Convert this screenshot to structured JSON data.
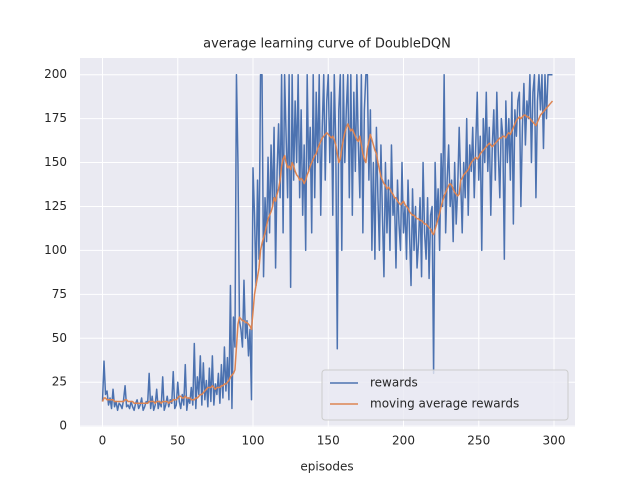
{
  "chart_data": {
    "type": "line",
    "title": "average learning curve of DoubleDQN",
    "x_label": "episodes",
    "x": [
      0,
      1,
      2,
      3,
      4,
      5,
      6,
      7,
      8,
      9,
      10,
      11,
      12,
      13,
      14,
      15,
      16,
      17,
      18,
      19,
      20,
      21,
      22,
      23,
      24,
      25,
      26,
      27,
      28,
      29,
      30,
      31,
      32,
      33,
      34,
      35,
      36,
      37,
      38,
      39,
      40,
      41,
      42,
      43,
      44,
      45,
      46,
      47,
      48,
      49,
      50,
      51,
      52,
      53,
      54,
      55,
      56,
      57,
      58,
      59,
      60,
      61,
      62,
      63,
      64,
      65,
      66,
      67,
      68,
      69,
      70,
      71,
      72,
      73,
      74,
      75,
      76,
      77,
      78,
      79,
      80,
      81,
      82,
      83,
      84,
      85,
      86,
      87,
      88,
      89,
      90,
      91,
      92,
      93,
      94,
      95,
      96,
      97,
      98,
      99,
      100,
      101,
      102,
      103,
      104,
      105,
      106,
      107,
      108,
      109,
      110,
      111,
      112,
      113,
      114,
      115,
      116,
      117,
      118,
      119,
      120,
      121,
      122,
      123,
      124,
      125,
      126,
      127,
      128,
      129,
      130,
      131,
      132,
      133,
      134,
      135,
      136,
      137,
      138,
      139,
      140,
      141,
      142,
      143,
      144,
      145,
      146,
      147,
      148,
      149,
      150,
      151,
      152,
      153,
      154,
      155,
      156,
      157,
      158,
      159,
      160,
      161,
      162,
      163,
      164,
      165,
      166,
      167,
      168,
      169,
      170,
      171,
      172,
      173,
      174,
      175,
      176,
      177,
      178,
      179,
      180,
      181,
      182,
      183,
      184,
      185,
      186,
      187,
      188,
      189,
      190,
      191,
      192,
      193,
      194,
      195,
      196,
      197,
      198,
      199,
      200,
      201,
      202,
      203,
      204,
      205,
      206,
      207,
      208,
      209,
      210,
      211,
      212,
      213,
      214,
      215,
      216,
      217,
      218,
      219,
      220,
      221,
      222,
      223,
      224,
      225,
      226,
      227,
      228,
      229,
      230,
      231,
      232,
      233,
      234,
      235,
      236,
      237,
      238,
      239,
      240,
      241,
      242,
      243,
      244,
      245,
      246,
      247,
      248,
      249,
      250,
      251,
      252,
      253,
      254,
      255,
      256,
      257,
      258,
      259,
      260,
      261,
      262,
      263,
      264,
      265,
      266,
      267,
      268,
      269,
      270,
      271,
      272,
      273,
      274,
      275,
      276,
      277,
      278,
      279,
      280,
      281,
      282,
      283,
      284,
      285,
      286,
      287,
      288,
      289,
      290,
      291,
      292,
      293,
      294,
      295,
      296,
      297,
      298,
      299
    ],
    "series": [
      {
        "name": "rewards",
        "color": "#4c72b0",
        "values": [
          14,
          37,
          18,
          20,
          12,
          16,
          10,
          21,
          11,
          14,
          9,
          13,
          12,
          10,
          15,
          23,
          11,
          12,
          10,
          14,
          11,
          9,
          13,
          15,
          10,
          12,
          16,
          9,
          11,
          14,
          13,
          30,
          10,
          17,
          9,
          12,
          21,
          10,
          14,
          11,
          28,
          9,
          12,
          17,
          11,
          15,
          13,
          31,
          10,
          12,
          25,
          14,
          10,
          18,
          12,
          35,
          9,
          16,
          13,
          22,
          12,
          47,
          10,
          28,
          18,
          40,
          12,
          36,
          15,
          26,
          11,
          33,
          14,
          40,
          12,
          24,
          18,
          30,
          13,
          35,
          16,
          45,
          20,
          39,
          15,
          80,
          10,
          62,
          45,
          200,
          150,
          60,
          55,
          45,
          83,
          50,
          60,
          40,
          55,
          15,
          147,
          120,
          80,
          140,
          95,
          200,
          200,
          85,
          130,
          105,
          153,
          110,
          160,
          125,
          170,
          90,
          145,
          172,
          130,
          200,
          110,
          200,
          165,
          130,
          200,
          79,
          200,
          140,
          185,
          150,
          200,
          130,
          180,
          120,
          160,
          100,
          200,
          145,
          170,
          110,
          200,
          130,
          190,
          150,
          200,
          120,
          170,
          200,
          140,
          185,
          200,
          150,
          190,
          120,
          200,
          160,
          44,
          180,
          200,
          100,
          200,
          150,
          180,
          200,
          130,
          200,
          120,
          190,
          145,
          200,
          160,
          130,
          200,
          110,
          180,
          200,
          200,
          140,
          180,
          100,
          150,
          95,
          170,
          130,
          100,
          160,
          120,
          85,
          150,
          110,
          140,
          100,
          160,
          120,
          130,
          90,
          140,
          115,
          100,
          150,
          110,
          125,
          95,
          140,
          110,
          80,
          135,
          100,
          125,
          90,
          105,
          130,
          85,
          150,
          110,
          95,
          130,
          84,
          120,
          125,
          30,
          150,
          115,
          135,
          100,
          155,
          125,
          200,
          110,
          140,
          160,
          125,
          140,
          105,
          150,
          115,
          135,
          170,
          140,
          110,
          150,
          130,
          175,
          120,
          160,
          145,
          170,
          130,
          160,
          190,
          140,
          165,
          100,
          175,
          150,
          190,
          145,
          170,
          120,
          160,
          180,
          140,
          190,
          155,
          130,
          175,
          165,
          95,
          185,
          150,
          175,
          140,
          190,
          115,
          180,
          165,
          185,
          190,
          125,
          170,
          195,
          160,
          185,
          175,
          200,
          150,
          190,
          200,
          130,
          185,
          200,
          180,
          200,
          158,
          200,
          175,
          200,
          200,
          200,
          200
        ]
      },
      {
        "name": "moving average rewards",
        "color": "#dd8452",
        "values": [
          14,
          16,
          16,
          15,
          15,
          15,
          15,
          15,
          14,
          14,
          14,
          14,
          14,
          14,
          14,
          15,
          15,
          14,
          14,
          14,
          14,
          13,
          13,
          13,
          13,
          13,
          13,
          13,
          13,
          13,
          13,
          14,
          14,
          14,
          14,
          13,
          14,
          14,
          14,
          13,
          14,
          14,
          14,
          14,
          13,
          14,
          14,
          15,
          15,
          15,
          16,
          17,
          17,
          16,
          16,
          17,
          16,
          16,
          16,
          15,
          15,
          15,
          16,
          16,
          17,
          18,
          18,
          19,
          20,
          21,
          22,
          22,
          22,
          23,
          22,
          21,
          22,
          22,
          22,
          23,
          23,
          24,
          24,
          25,
          26,
          28,
          29,
          30,
          32,
          45,
          58,
          62,
          61,
          60,
          60,
          59,
          59,
          58,
          57,
          55,
          65,
          75,
          80,
          85,
          90,
          100,
          104,
          107,
          110,
          114,
          118,
          120,
          122,
          125,
          130,
          128,
          132,
          135,
          140,
          148,
          152,
          154,
          150,
          147,
          148,
          146,
          150,
          148,
          145,
          143,
          142,
          140,
          141,
          140,
          138,
          140,
          143,
          145,
          148,
          150,
          152,
          154,
          155,
          158,
          160,
          162,
          164,
          165,
          166,
          167,
          166,
          165,
          164,
          165,
          163,
          160,
          155,
          150,
          152,
          158,
          163,
          167,
          170,
          172,
          170,
          168,
          169,
          167,
          165,
          163,
          162,
          165,
          160,
          155,
          152,
          150,
          158,
          162,
          166,
          163,
          160,
          157,
          155,
          150,
          146,
          142,
          140,
          138,
          137,
          135,
          136,
          135,
          133,
          132,
          130,
          130,
          128,
          127,
          126,
          127,
          128,
          126,
          125,
          124,
          122,
          121,
          120,
          120,
          119,
          118,
          118,
          117,
          117,
          116,
          115,
          115,
          114,
          113,
          112,
          110,
          109,
          112,
          115,
          118,
          121,
          125,
          128,
          131,
          133,
          135,
          137,
          138,
          137,
          135,
          133,
          132,
          131,
          132,
          140,
          141,
          143,
          144,
          145,
          146,
          148,
          150,
          151,
          152,
          153,
          152,
          153,
          155,
          156,
          157,
          158,
          159,
          160,
          161,
          160,
          159,
          160,
          161,
          162,
          163,
          164,
          164,
          165,
          165,
          164,
          166,
          167,
          166,
          168,
          170,
          172,
          174,
          175,
          176,
          175,
          176,
          177,
          177,
          176,
          176,
          175,
          174,
          173,
          172,
          171,
          173,
          175,
          177,
          178,
          179,
          180,
          181,
          182,
          183,
          184,
          185
        ]
      }
    ],
    "xlim": [
      -14.95,
      313.95
    ],
    "xticks": [
      0,
      50,
      100,
      150,
      200,
      250,
      300
    ],
    "ylim": [
      -0.5,
      209.5
    ],
    "yticks": [
      0,
      25,
      50,
      75,
      100,
      125,
      150,
      175,
      200
    ],
    "grid": true,
    "legend": "lower right"
  }
}
